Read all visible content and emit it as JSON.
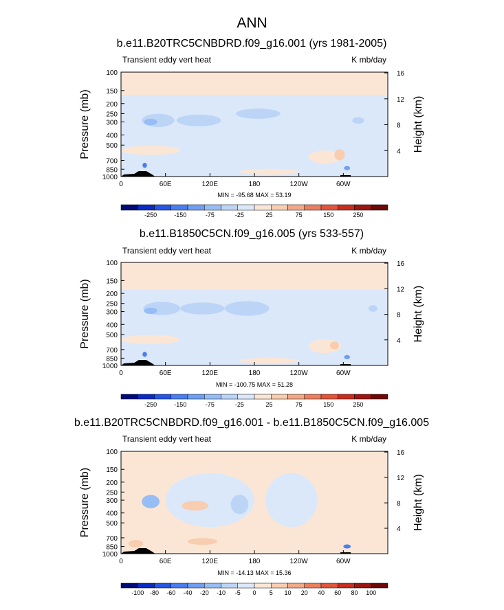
{
  "figure_title": "ANN",
  "chart_data": [
    {
      "type": "contour",
      "title": "b.e11.B20TRC5CNBDRD.f09_g16.001 (yrs 1981-2005)",
      "left_label": "Transient eddy vert heat",
      "right_label": "K mb/day",
      "ylabel": "Pressure (mb)",
      "y2label": "Height (km)",
      "x_ticks": [
        "0",
        "60E",
        "120E",
        "180",
        "120W",
        "60W"
      ],
      "x_tick_lon": [
        0,
        60,
        120,
        180,
        240,
        300
      ],
      "xlim": [
        0,
        360
      ],
      "y_ticks": [
        "100",
        "150",
        "200",
        "250",
        "300",
        "400",
        "500",
        "700",
        "850",
        "1000"
      ],
      "y_tick_p": [
        100,
        150,
        200,
        250,
        300,
        400,
        500,
        700,
        850,
        1000
      ],
      "ylim": [
        1000,
        100
      ],
      "y2_ticks": [
        "16",
        "12",
        "8",
        "4"
      ],
      "y2_tick_km": [
        16,
        12,
        8,
        4
      ],
      "stats": "MIN = -95.68   MAX =  53.19",
      "min": -95.68,
      "max": 53.19,
      "colorbar_levels": [
        "-250",
        "-150",
        "-75",
        "-25",
        "25",
        "75",
        "150",
        "250"
      ],
      "colorbar_colors": [
        "#000b7a",
        "#0a2cc4",
        "#2656e6",
        "#4a7ef0",
        "#6f9ff3",
        "#96bdf5",
        "#bcd5f7",
        "#dbe8fa",
        "#fbe6d6",
        "#f8cdb0",
        "#f3a887",
        "#ec7f5d",
        "#e2553a",
        "#c82d20",
        "#9e1611",
        "#6e0706"
      ]
    },
    {
      "type": "contour",
      "title": "b.e11.B1850C5CN.f09_g16.005 (yrs 533-557)",
      "left_label": "Transient eddy vert heat",
      "right_label": "K mb/day",
      "ylabel": "Pressure (mb)",
      "y2label": "Height (km)",
      "x_ticks": [
        "0",
        "60E",
        "120E",
        "180",
        "120W",
        "60W"
      ],
      "x_tick_lon": [
        0,
        60,
        120,
        180,
        240,
        300
      ],
      "xlim": [
        0,
        360
      ],
      "y_ticks": [
        "100",
        "150",
        "200",
        "250",
        "300",
        "400",
        "500",
        "700",
        "850",
        "1000"
      ],
      "y_tick_p": [
        100,
        150,
        200,
        250,
        300,
        400,
        500,
        700,
        850,
        1000
      ],
      "ylim": [
        1000,
        100
      ],
      "y2_ticks": [
        "16",
        "12",
        "8",
        "4"
      ],
      "y2_tick_km": [
        16,
        12,
        8,
        4
      ],
      "stats": "MIN = -100.75   MAX =  51.28",
      "min": -100.75,
      "max": 51.28,
      "colorbar_levels": [
        "-250",
        "-150",
        "-75",
        "-25",
        "25",
        "75",
        "150",
        "250"
      ],
      "colorbar_colors": [
        "#000b7a",
        "#0a2cc4",
        "#2656e6",
        "#4a7ef0",
        "#6f9ff3",
        "#96bdf5",
        "#bcd5f7",
        "#dbe8fa",
        "#fbe6d6",
        "#f8cdb0",
        "#f3a887",
        "#ec7f5d",
        "#e2553a",
        "#c82d20",
        "#9e1611",
        "#6e0706"
      ]
    },
    {
      "type": "contour",
      "title": "b.e11.B20TRC5CNBDRD.f09_g16.001 - b.e11.B1850C5CN.f09_g16.005",
      "left_label": "Transient eddy vert heat",
      "right_label": "K mb/day",
      "ylabel": "Pressure (mb)",
      "y2label": "Height (km)",
      "x_ticks": [
        "0",
        "60E",
        "120E",
        "180",
        "120W",
        "60W"
      ],
      "x_tick_lon": [
        0,
        60,
        120,
        180,
        240,
        300
      ],
      "xlim": [
        0,
        360
      ],
      "y_ticks": [
        "100",
        "150",
        "200",
        "250",
        "300",
        "400",
        "500",
        "700",
        "850",
        "1000"
      ],
      "y_tick_p": [
        100,
        150,
        200,
        250,
        300,
        400,
        500,
        700,
        850,
        1000
      ],
      "ylim": [
        1000,
        100
      ],
      "y2_ticks": [
        "16",
        "12",
        "8",
        "4"
      ],
      "y2_tick_km": [
        16,
        12,
        8,
        4
      ],
      "stats": "MIN = -14.13   MAX =  15.36",
      "min": -14.13,
      "max": 15.36,
      "colorbar_levels": [
        "-100",
        "-80",
        "-60",
        "-40",
        "-20",
        "-10",
        "-5",
        "0",
        "5",
        "10",
        "20",
        "40",
        "60",
        "80",
        "100"
      ],
      "colorbar_colors": [
        "#000b7a",
        "#0a2cc4",
        "#2656e6",
        "#4a7ef0",
        "#6f9ff3",
        "#96bdf5",
        "#bcd5f7",
        "#dbe8fa",
        "#fbe6d6",
        "#f8cdb0",
        "#f3a887",
        "#ec7f5d",
        "#e2553a",
        "#c82d20",
        "#9e1611",
        "#6e0706"
      ]
    }
  ]
}
